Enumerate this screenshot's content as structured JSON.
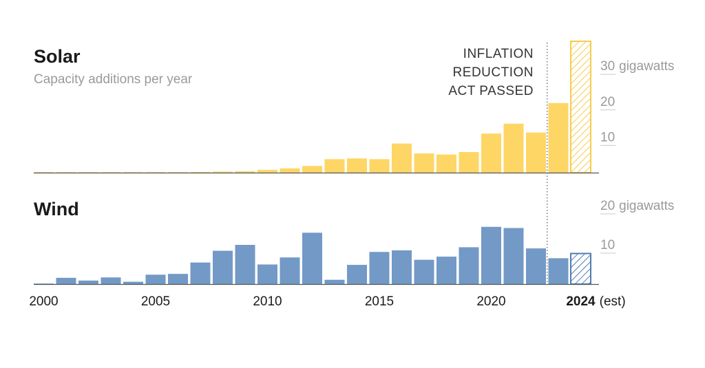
{
  "colors": {
    "solar": "#fdd665",
    "solar_estimate_stroke": "#f7cc4c",
    "wind": "#7399c6",
    "wind_estimate_stroke": "#4f7cb3",
    "title": "#1a1a1a",
    "subtitle": "#9a9a9a",
    "tick_label": "#9a9a9a",
    "axis_label": "#1a1a1a",
    "annotation": "#333333"
  },
  "annotation": {
    "lines": [
      "INFLATION",
      "REDUCTION",
      "ACT PASSED"
    ],
    "year": 2022
  },
  "x_axis": {
    "labels": [
      {
        "year": 2000,
        "text": "2000",
        "bold": false
      },
      {
        "year": 2005,
        "text": "2005",
        "bold": false
      },
      {
        "year": 2010,
        "text": "2010",
        "bold": false
      },
      {
        "year": 2015,
        "text": "2015",
        "bold": false
      },
      {
        "year": 2020,
        "text": "2020",
        "bold": false
      },
      {
        "year": 2024,
        "text": "2024",
        "bold": true
      }
    ],
    "suffix": "(est)"
  },
  "chart_data": [
    {
      "type": "bar",
      "title": "Solar",
      "subtitle": "Capacity additions per year",
      "unit": "gigawatts",
      "ylim": [
        0,
        37
      ],
      "yticks": [
        {
          "value": 30,
          "label": "30",
          "unit_label": "gigawatts"
        },
        {
          "value": 20,
          "label": "20",
          "unit_label": ""
        },
        {
          "value": 10,
          "label": "10",
          "unit_label": ""
        }
      ],
      "grid": false,
      "legend": "none",
      "categories": [
        2000,
        2001,
        2002,
        2003,
        2004,
        2005,
        2006,
        2007,
        2008,
        2009,
        2010,
        2011,
        2012,
        2013,
        2014,
        2015,
        2016,
        2017,
        2018,
        2019,
        2020,
        2021,
        2022,
        2023,
        2024
      ],
      "values": [
        0.05,
        0.05,
        0.05,
        0.05,
        0.1,
        0.1,
        0.1,
        0.2,
        0.3,
        0.4,
        0.8,
        1.2,
        1.9,
        3.8,
        4.0,
        3.8,
        8.2,
        5.4,
        5.1,
        5.8,
        11.0,
        13.8,
        11.3,
        19.6,
        37.0
      ],
      "estimated": [
        false,
        false,
        false,
        false,
        false,
        false,
        false,
        false,
        false,
        false,
        false,
        false,
        false,
        false,
        false,
        false,
        false,
        false,
        false,
        false,
        false,
        false,
        false,
        false,
        true
      ]
    },
    {
      "type": "bar",
      "title": "Wind",
      "subtitle": "",
      "unit": "gigawatts",
      "ylim": [
        0,
        20
      ],
      "yticks": [
        {
          "value": 20,
          "label": "20",
          "unit_label": "gigawatts"
        },
        {
          "value": 10,
          "label": "10",
          "unit_label": ""
        }
      ],
      "grid": false,
      "legend": "none",
      "categories": [
        2000,
        2001,
        2002,
        2003,
        2004,
        2005,
        2006,
        2007,
        2008,
        2009,
        2010,
        2011,
        2012,
        2013,
        2014,
        2015,
        2016,
        2017,
        2018,
        2019,
        2020,
        2021,
        2022,
        2023,
        2024
      ],
      "values": [
        0.1,
        1.6,
        0.9,
        1.7,
        0.6,
        2.4,
        2.6,
        5.5,
        8.5,
        10.0,
        5.0,
        6.8,
        13.1,
        1.1,
        4.9,
        8.2,
        8.6,
        6.2,
        7.0,
        9.4,
        14.6,
        14.3,
        9.1,
        6.6,
        7.8
      ],
      "estimated": [
        false,
        false,
        false,
        false,
        false,
        false,
        false,
        false,
        false,
        false,
        false,
        false,
        false,
        false,
        false,
        false,
        false,
        false,
        false,
        false,
        false,
        false,
        false,
        false,
        true
      ]
    }
  ]
}
